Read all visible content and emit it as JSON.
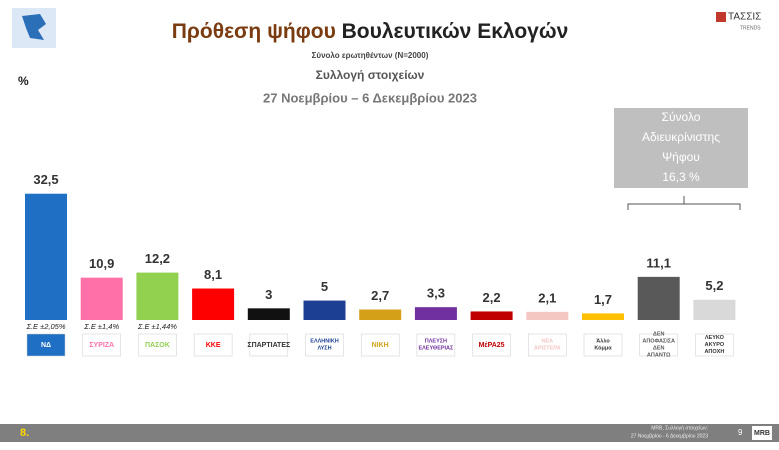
{
  "header": {
    "title_highlight": "Πρόθεση ψήφου",
    "title_rest": "Βουλευτικών Εκλογών",
    "sample": "Σύνολο ερωτηθέντων (Ν=2000)",
    "collection": "Συλλογή στοιχείων",
    "period": "27 Νοεμβρίου – 6 Δεκεμβρίου  2023",
    "brand": "ΤΑΣΣΙΣ",
    "brand_sub": "TRENDS"
  },
  "chart_data": {
    "type": "bar",
    "y_label": "%",
    "categories": [
      "ΝΔ",
      "ΣΥΡΙΖΑ",
      "ΠΑΣΟΚ",
      "ΚΚΕ",
      "ΣΠΑΡΤΙΑΤΕΣ",
      "ΕΛΛΗΝΙΚΗ ΛΥΣΗ",
      "ΝΙΚΗ",
      "ΠΛΕΥΣΗ ΕΛΕΥΘΕΡΙΑΣ",
      "ΜέΡΑ25",
      "ΝΕΑ ΑΡΙΣΤΕΡΑ",
      "Άλλο Κόμμα",
      "ΔΕΝ ΑΠΟΦΑΣΙΣΑ ΔΕΝ ΑΠΑΝΤΩ",
      "ΛΕΥΚΟ ΑΚΥΡΟ ΑΠΟΧΗ"
    ],
    "values": [
      32.5,
      10.9,
      12.2,
      8.1,
      3,
      5,
      2.7,
      3.3,
      2.2,
      2.1,
      1.7,
      11.1,
      5.2
    ],
    "value_labels": [
      "32,5",
      "10,9",
      "12,2",
      "8,1",
      "3",
      "5",
      "2,7",
      "3,3",
      "2,2",
      "2,1",
      "1,7",
      "11,1",
      "5,2"
    ],
    "colors": [
      "#1f6fc5",
      "#ff6fa8",
      "#92d050",
      "#ff0000",
      "#111111",
      "#1c3f94",
      "#d4a017",
      "#7030a0",
      "#c00000",
      "#f4c7c3",
      "#ffc000",
      "#595959",
      "#d9d9d9"
    ],
    "error_labels": [
      "Σ.Ε ±2,05%",
      "Σ.Ε ±1,4%",
      "Σ.Ε ±1,44%",
      null,
      null,
      null,
      null,
      null,
      null,
      null,
      null,
      null,
      null
    ],
    "ylim": [
      0,
      35
    ],
    "annotation": [
      "Σύνολο",
      "Αδιευκρίνιστης",
      "Ψήφου",
      "16,3 %"
    ]
  },
  "footer": {
    "page_left": "8.",
    "source": "MRB, Συλλογή στοιχείων:",
    "source_period": "27 Νοεμβρίου - 6 Δεκεμβρίου 2023",
    "page_number": "9",
    "logo": "MRB"
  }
}
